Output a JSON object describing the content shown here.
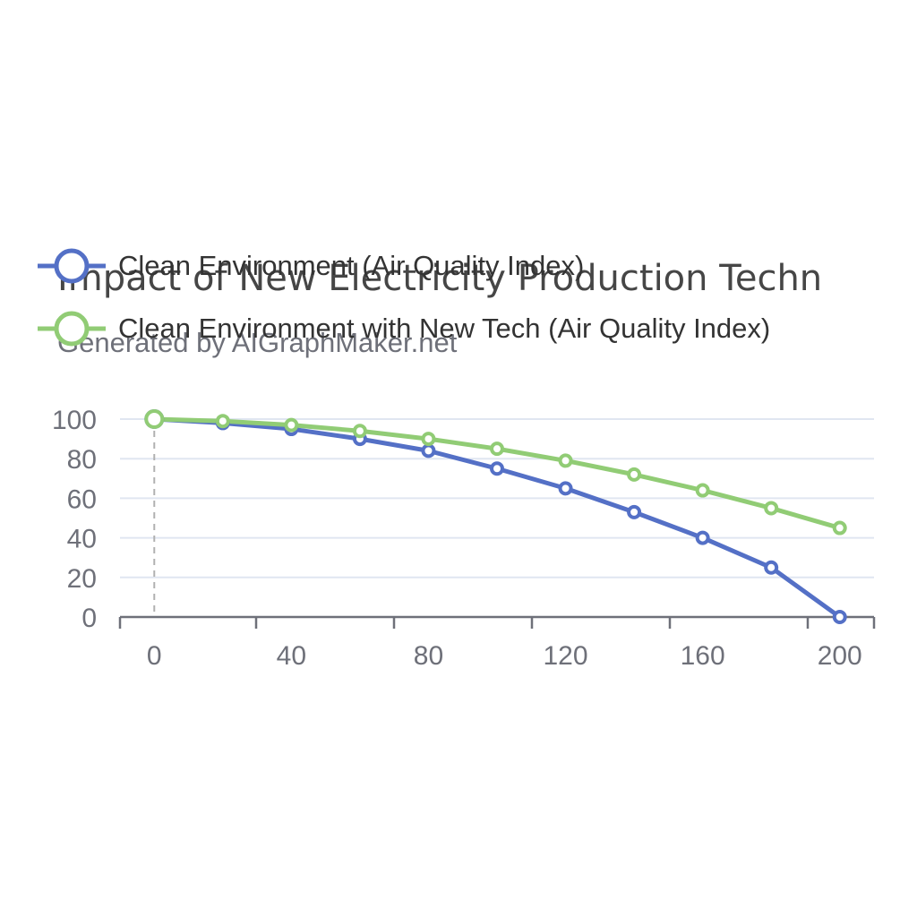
{
  "chart_data": {
    "type": "line",
    "title": "Impact of New Electricity Production Techn",
    "subtitle": "Generated by AIGraphMaker.net",
    "x": [
      0,
      20,
      40,
      60,
      80,
      100,
      120,
      140,
      160,
      180,
      200
    ],
    "x_ticks": [
      "0",
      "40",
      "80",
      "120",
      "160",
      "200"
    ],
    "y_ticks": [
      "0",
      "20",
      "40",
      "60",
      "80",
      "100"
    ],
    "xlim": [
      -10,
      210
    ],
    "ylim": [
      0,
      100
    ],
    "grid": true,
    "legend_position": "top-left",
    "series": [
      {
        "name": "Clean Environment (Air Quality Index)",
        "color": "#5470c6",
        "values": [
          100,
          98,
          95,
          90,
          84,
          75,
          65,
          53,
          40,
          25,
          0
        ]
      },
      {
        "name": "Clean Environment with New Tech (Air Quality Index)",
        "color": "#91cc75",
        "values": [
          100,
          99,
          97,
          94,
          90,
          85,
          79,
          72,
          64,
          55,
          45
        ]
      }
    ]
  }
}
